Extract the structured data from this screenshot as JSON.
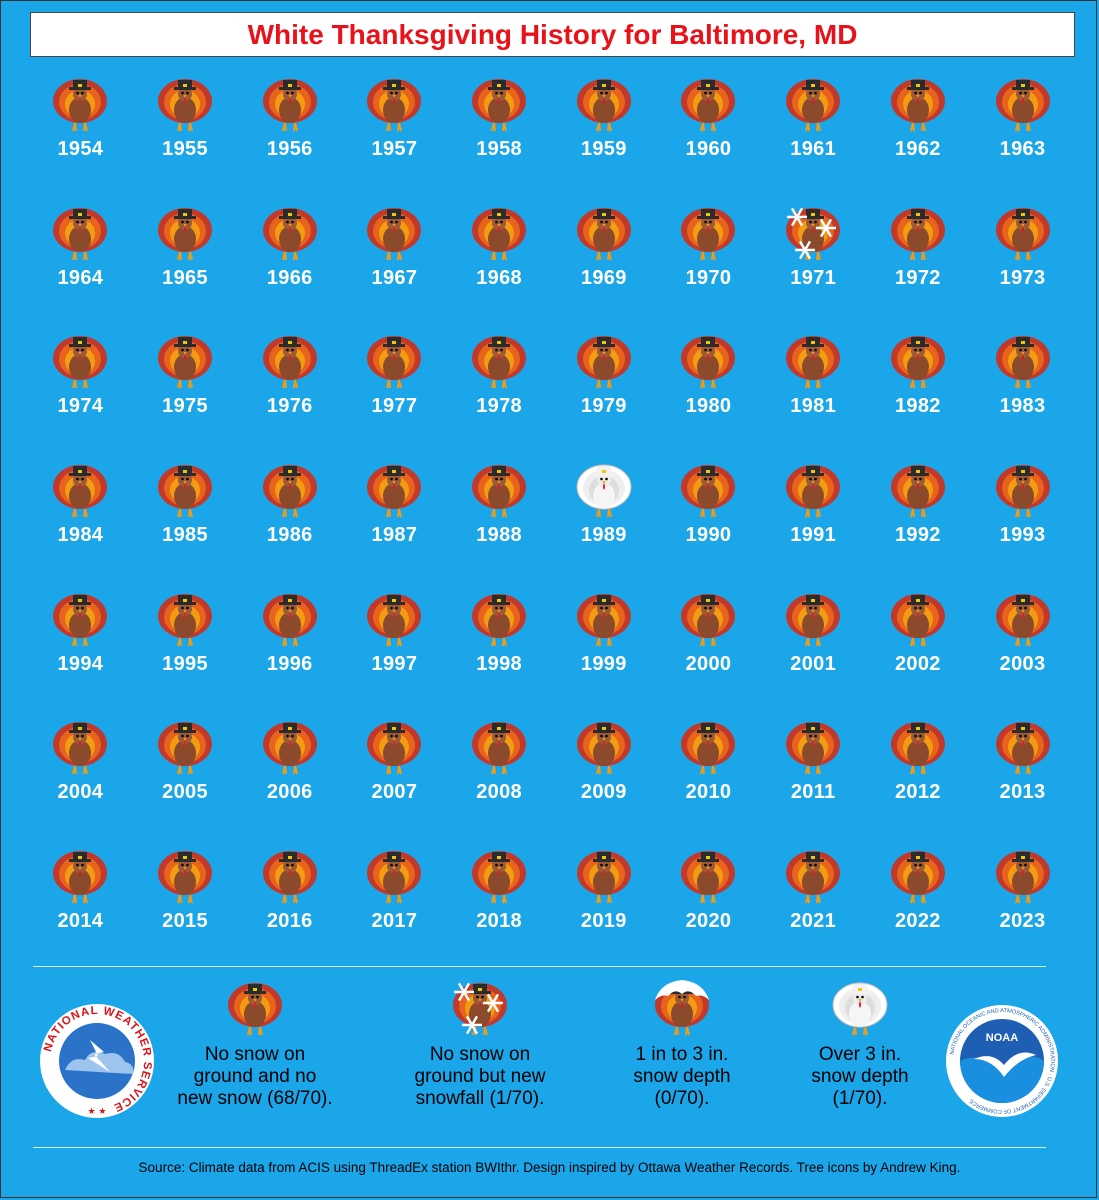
{
  "title": "White Thanksgiving History for Baltimore, MD",
  "colors": {
    "background": "#1ba6ea",
    "title_text": "#e8121a",
    "year_text": "#ffffff"
  },
  "years": [
    {
      "year": "1954",
      "icon": "turkey-icon"
    },
    {
      "year": "1955",
      "icon": "turkey-icon"
    },
    {
      "year": "1956",
      "icon": "turkey-icon"
    },
    {
      "year": "1957",
      "icon": "turkey-icon"
    },
    {
      "year": "1958",
      "icon": "turkey-icon"
    },
    {
      "year": "1959",
      "icon": "turkey-icon"
    },
    {
      "year": "1960",
      "icon": "turkey-icon"
    },
    {
      "year": "1961",
      "icon": "turkey-icon"
    },
    {
      "year": "1962",
      "icon": "turkey-icon"
    },
    {
      "year": "1963",
      "icon": "turkey-icon"
    },
    {
      "year": "1964",
      "icon": "turkey-icon"
    },
    {
      "year": "1965",
      "icon": "turkey-icon"
    },
    {
      "year": "1966",
      "icon": "turkey-icon"
    },
    {
      "year": "1967",
      "icon": "turkey-icon"
    },
    {
      "year": "1968",
      "icon": "turkey-icon"
    },
    {
      "year": "1969",
      "icon": "turkey-icon"
    },
    {
      "year": "1970",
      "icon": "turkey-icon"
    },
    {
      "year": "1971",
      "icon": "snowflake-turkey-icon"
    },
    {
      "year": "1972",
      "icon": "turkey-icon"
    },
    {
      "year": "1973",
      "icon": "turkey-icon"
    },
    {
      "year": "1974",
      "icon": "turkey-icon"
    },
    {
      "year": "1975",
      "icon": "turkey-icon"
    },
    {
      "year": "1976",
      "icon": "turkey-icon"
    },
    {
      "year": "1977",
      "icon": "turkey-icon"
    },
    {
      "year": "1978",
      "icon": "turkey-icon"
    },
    {
      "year": "1979",
      "icon": "turkey-icon"
    },
    {
      "year": "1980",
      "icon": "turkey-icon"
    },
    {
      "year": "1981",
      "icon": "turkey-icon"
    },
    {
      "year": "1982",
      "icon": "turkey-icon"
    },
    {
      "year": "1983",
      "icon": "turkey-icon"
    },
    {
      "year": "1984",
      "icon": "turkey-icon"
    },
    {
      "year": "1985",
      "icon": "turkey-icon"
    },
    {
      "year": "1986",
      "icon": "turkey-icon"
    },
    {
      "year": "1987",
      "icon": "turkey-icon"
    },
    {
      "year": "1988",
      "icon": "turkey-icon"
    },
    {
      "year": "1989",
      "icon": "white-turkey-icon"
    },
    {
      "year": "1990",
      "icon": "turkey-icon"
    },
    {
      "year": "1991",
      "icon": "turkey-icon"
    },
    {
      "year": "1992",
      "icon": "turkey-icon"
    },
    {
      "year": "1993",
      "icon": "turkey-icon"
    },
    {
      "year": "1994",
      "icon": "turkey-icon"
    },
    {
      "year": "1995",
      "icon": "turkey-icon"
    },
    {
      "year": "1996",
      "icon": "turkey-icon"
    },
    {
      "year": "1997",
      "icon": "turkey-icon"
    },
    {
      "year": "1998",
      "icon": "turkey-icon"
    },
    {
      "year": "1999",
      "icon": "turkey-icon"
    },
    {
      "year": "2000",
      "icon": "turkey-icon"
    },
    {
      "year": "2001",
      "icon": "turkey-icon"
    },
    {
      "year": "2002",
      "icon": "turkey-icon"
    },
    {
      "year": "2003",
      "icon": "turkey-icon"
    },
    {
      "year": "2004",
      "icon": "turkey-icon"
    },
    {
      "year": "2005",
      "icon": "turkey-icon"
    },
    {
      "year": "2006",
      "icon": "turkey-icon"
    },
    {
      "year": "2007",
      "icon": "turkey-icon"
    },
    {
      "year": "2008",
      "icon": "turkey-icon"
    },
    {
      "year": "2009",
      "icon": "turkey-icon"
    },
    {
      "year": "2010",
      "icon": "turkey-icon"
    },
    {
      "year": "2011",
      "icon": "turkey-icon"
    },
    {
      "year": "2012",
      "icon": "turkey-icon"
    },
    {
      "year": "2013",
      "icon": "turkey-icon"
    },
    {
      "year": "2014",
      "icon": "turkey-icon"
    },
    {
      "year": "2015",
      "icon": "turkey-icon"
    },
    {
      "year": "2016",
      "icon": "turkey-icon"
    },
    {
      "year": "2017",
      "icon": "turkey-icon"
    },
    {
      "year": "2018",
      "icon": "turkey-icon"
    },
    {
      "year": "2019",
      "icon": "turkey-icon"
    },
    {
      "year": "2020",
      "icon": "turkey-icon"
    },
    {
      "year": "2021",
      "icon": "turkey-icon"
    },
    {
      "year": "2022",
      "icon": "turkey-icon"
    },
    {
      "year": "2023",
      "icon": "turkey-icon"
    }
  ],
  "legend": {
    "items": [
      {
        "icon": "turkey-icon",
        "lines": [
          "No snow on",
          "ground and no",
          "new snow (68/70)."
        ]
      },
      {
        "icon": "snowflake-turkey-icon",
        "lines": [
          "No snow on",
          "ground but new",
          "snowfall (1/70)."
        ]
      },
      {
        "icon": "snow-capped-turkey-icon",
        "lines": [
          "1 in to 3 in.",
          "snow depth",
          "(0/70)."
        ]
      },
      {
        "icon": "white-turkey-icon",
        "lines": [
          "Over 3 in.",
          "snow depth",
          "(1/70)."
        ]
      }
    ],
    "nws_logo_text": "NATIONAL WEATHER SERVICE",
    "noaa_logo_text": "NOAA",
    "noaa_ring_text": "NATIONAL OCEANIC AND ATMOSPHERIC ADMINISTRATION · U.S. DEPARTMENT OF COMMERCE"
  },
  "source": "Source: Climate data from ACIS using ThreadEx station BWIthr. Design inspired by Ottawa Weather Records. Tree icons by Andrew King."
}
